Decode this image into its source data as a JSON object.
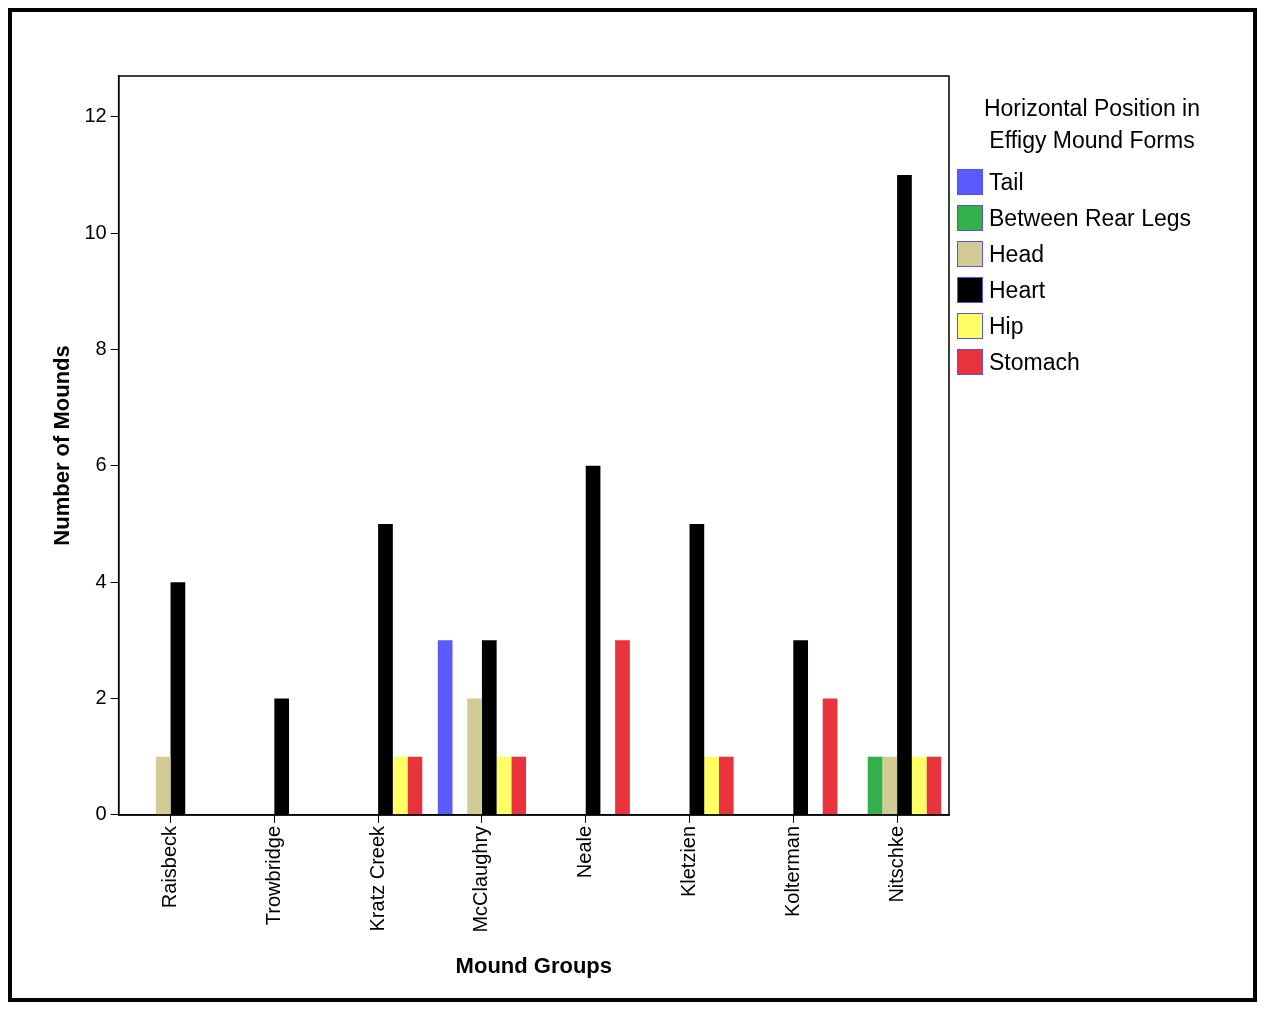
{
  "chart_data": {
    "type": "bar",
    "xlabel": "Mound Groups",
    "ylabel": "Number of Mounds",
    "legend_title": "Horizontal Position in Effigy Mound Forms",
    "categories": [
      "Raisbeck",
      "Trowbridge",
      "Kratz Creek",
      "McClaughry",
      "Neale",
      "Kletzien",
      "Kolterman",
      "Nitschke"
    ],
    "series": [
      {
        "name": "Tail",
        "color": "#5a5aff",
        "values": [
          null,
          null,
          null,
          3,
          null,
          null,
          null,
          null
        ]
      },
      {
        "name": "Between Rear Legs",
        "color": "#33b04a",
        "values": [
          null,
          null,
          null,
          null,
          null,
          null,
          null,
          1
        ]
      },
      {
        "name": "Head",
        "color": "#d2cb96",
        "values": [
          1,
          null,
          null,
          2,
          null,
          null,
          null,
          1
        ]
      },
      {
        "name": "Heart",
        "color": "#000000",
        "values": [
          4,
          2,
          5,
          3,
          6,
          5,
          3,
          11
        ]
      },
      {
        "name": "Hip",
        "color": "#ffff66",
        "values": [
          null,
          null,
          1,
          1,
          null,
          1,
          null,
          1
        ]
      },
      {
        "name": "Stomach",
        "color": "#e8323c",
        "values": [
          null,
          null,
          1,
          1,
          3,
          1,
          2,
          1
        ]
      }
    ],
    "ylim": [
      0,
      12.7
    ],
    "yticks": [
      0,
      2,
      4,
      6,
      8,
      10,
      12
    ],
    "grid": false,
    "legend": "right"
  }
}
